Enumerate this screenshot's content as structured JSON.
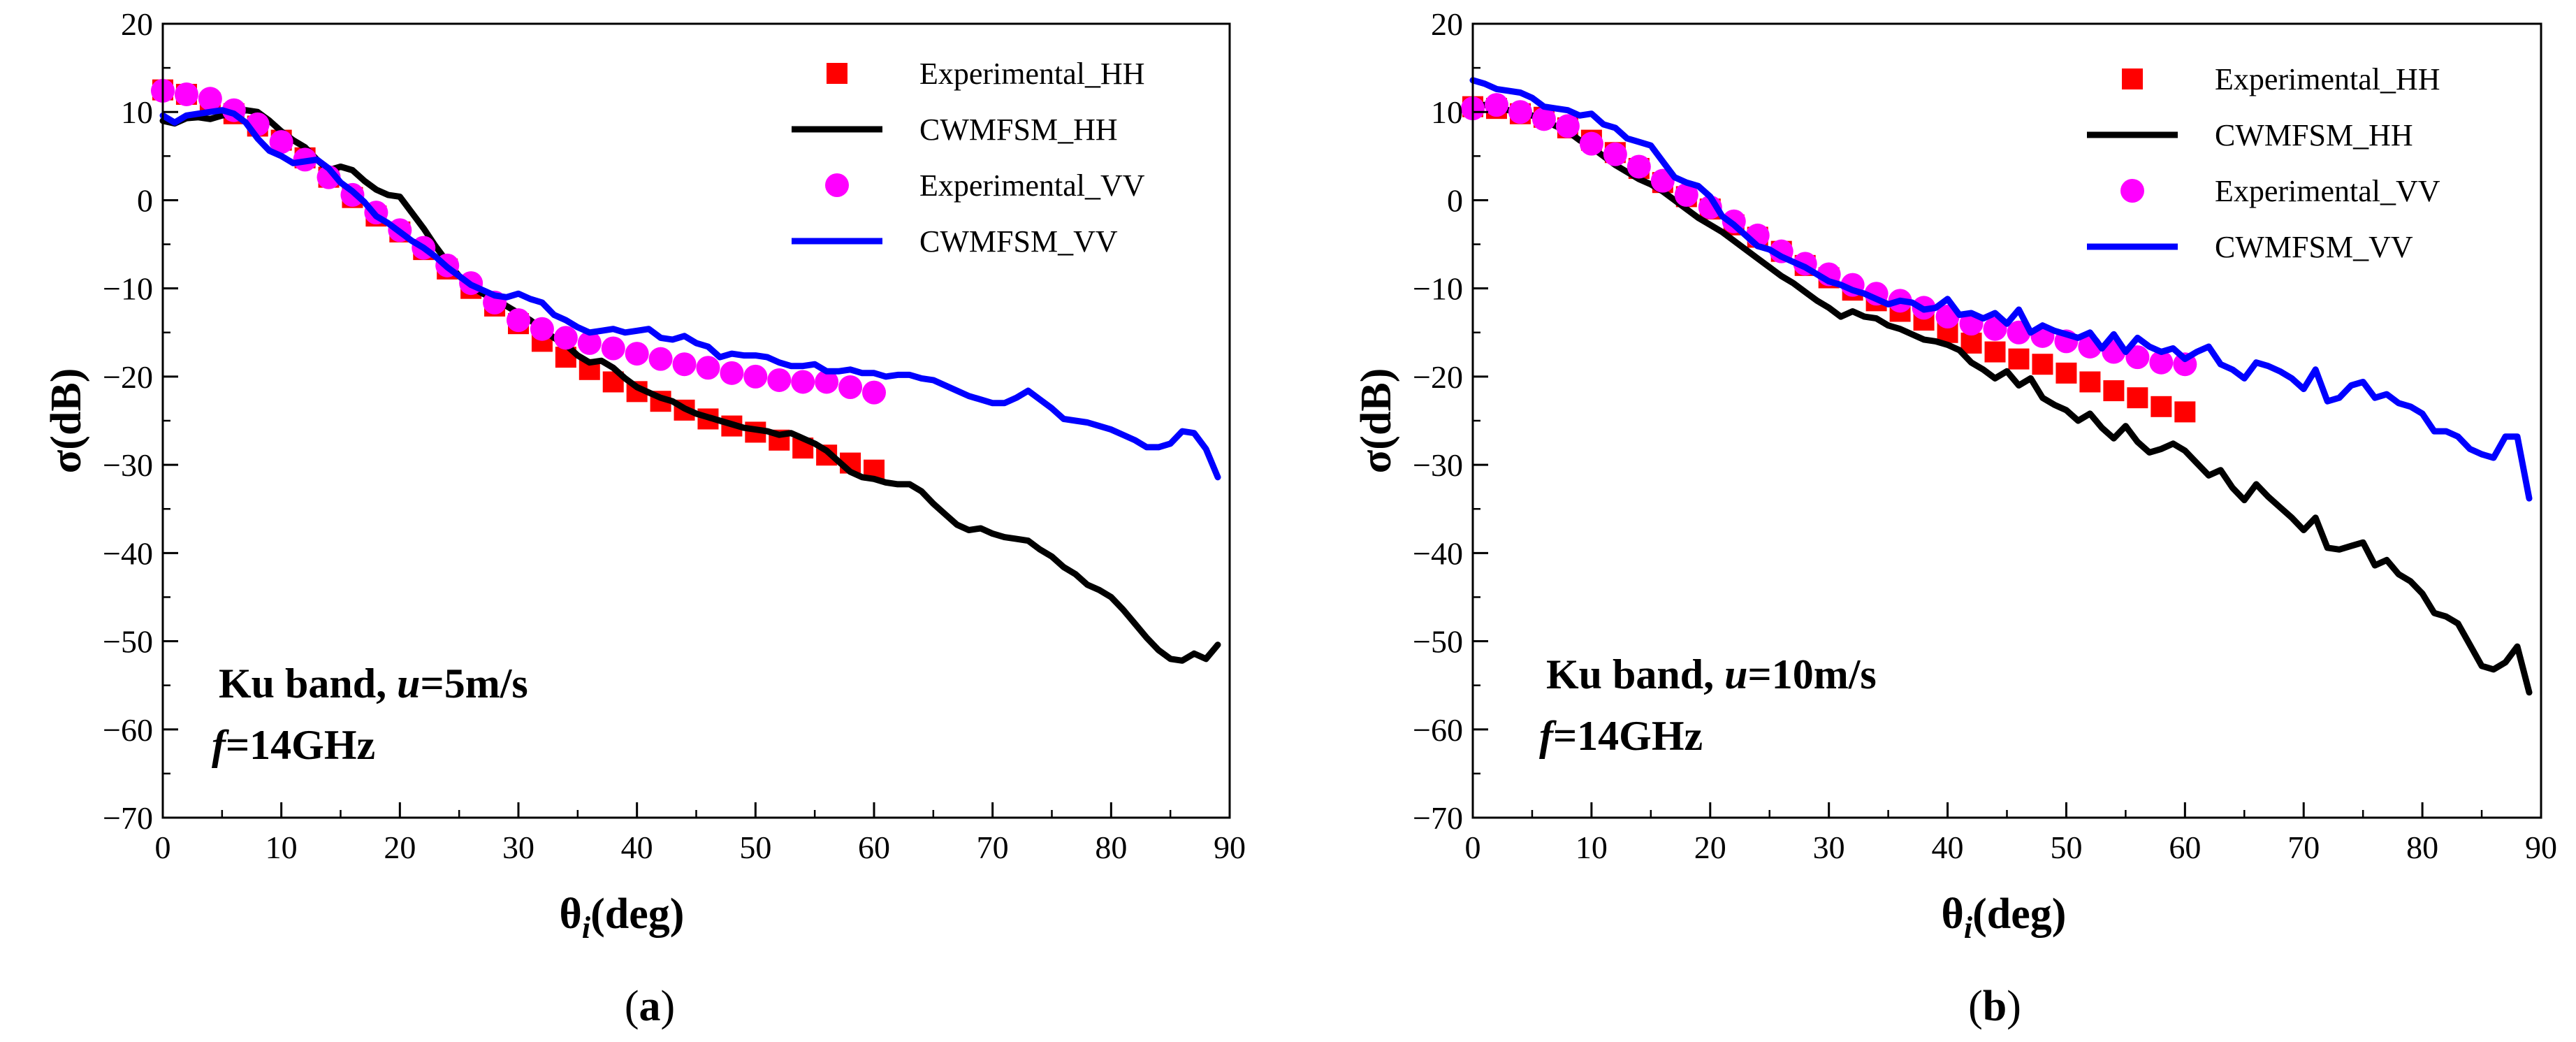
{
  "chart_data": [
    {
      "type": "line",
      "panel_label": "(a)",
      "panel_letter": "a",
      "xlabel": "θi(deg)",
      "xlabel_main": "θ",
      "xlabel_sub": "i",
      "xlabel_rest": "(deg)",
      "ylabel": "σ(dB)",
      "xlim": [
        0,
        90
      ],
      "ylim": [
        -70,
        20
      ],
      "xticks": [
        "0",
        "10",
        "20",
        "30",
        "40",
        "50",
        "60",
        "70",
        "80",
        "90"
      ],
      "yticks": [
        "20",
        "10",
        "0",
        "−10",
        "−20",
        "−30",
        "−40",
        "−50",
        "−60",
        "−70"
      ],
      "grid": false,
      "legend_position": "top-right",
      "annotation_line1": "Ku band, u=5m/s",
      "annotation_line1_a": "Ku band, ",
      "annotation_line1_var": "u",
      "annotation_line1_b": "=5m/s",
      "annotation_line2": "f=14GHz",
      "annotation_line2_var": "f",
      "annotation_line2_b": "=14GHz",
      "series": [
        {
          "name": "Experimental_HH",
          "kind": "marker",
          "marker": "square",
          "color": "#ff0000",
          "x": [
            0,
            2,
            4,
            6,
            8,
            10,
            12,
            14,
            16,
            18,
            20,
            22,
            24,
            26,
            28,
            30,
            32,
            34,
            36,
            38,
            40,
            42,
            44,
            46,
            48,
            50,
            52,
            54,
            56,
            58,
            60
          ],
          "y": [
            12.5,
            12,
            11,
            9.8,
            8.4,
            6.8,
            4.8,
            2.6,
            0.3,
            -1.8,
            -3.6,
            -5.6,
            -7.8,
            -10,
            -12,
            -14,
            -16,
            -17.8,
            -19.2,
            -20.6,
            -21.7,
            -22.8,
            -23.8,
            -24.8,
            -25.6,
            -26.3,
            -27.2,
            -28.1,
            -28.9,
            -29.8,
            -30.6
          ]
        },
        {
          "name": "CWMFSM_HH",
          "kind": "line",
          "color": "#000000",
          "x": [
            0,
            1,
            2,
            3,
            4,
            5,
            6,
            7,
            8,
            9,
            10,
            11,
            12,
            13,
            14,
            15,
            16,
            17,
            18,
            19,
            20,
            21,
            22,
            23,
            24,
            25,
            26,
            27,
            28,
            29,
            30,
            31,
            32,
            33,
            34,
            35,
            36,
            37,
            38,
            39,
            40,
            41,
            42,
            43,
            44,
            45,
            46,
            47,
            48,
            49,
            50,
            51,
            52,
            53,
            54,
            55,
            56,
            57,
            58,
            59,
            60,
            61,
            62,
            63,
            64,
            65,
            66,
            67,
            68,
            69,
            70,
            71,
            72,
            73,
            74,
            75,
            76,
            77,
            78,
            79,
            80,
            81,
            82,
            83,
            84,
            85,
            86,
            87,
            88,
            89
          ],
          "y": [
            9,
            8.7,
            9.3,
            9.4,
            9.2,
            9.6,
            9.8,
            10.2,
            10,
            9,
            7.8,
            6.8,
            6,
            4.6,
            3.4,
            3.8,
            3.4,
            2.2,
            1.2,
            0.6,
            0.4,
            -1.4,
            -3.2,
            -5.2,
            -7,
            -8.6,
            -9.8,
            -10.6,
            -11.2,
            -12,
            -12.8,
            -13.6,
            -14.6,
            -15.6,
            -16.4,
            -17.6,
            -18.4,
            -18.2,
            -19,
            -20.2,
            -21.2,
            -21.8,
            -22.4,
            -22.8,
            -23.6,
            -24.2,
            -24.6,
            -25,
            -25.4,
            -25.8,
            -26,
            -26.2,
            -26.6,
            -26.4,
            -27,
            -27.6,
            -28.4,
            -29.6,
            -30.8,
            -31.4,
            -31.6,
            -32,
            -32.2,
            -32.2,
            -33,
            -34.4,
            -35.6,
            -36.8,
            -37.4,
            -37.2,
            -37.8,
            -38.2,
            -38.4,
            -38.6,
            -39.6,
            -40.4,
            -41.6,
            -42.4,
            -43.6,
            -44.2,
            -45,
            -46.4,
            -48,
            -49.6,
            -51,
            -52,
            -52.2,
            -51.4,
            -52,
            -50.4
          ]
        },
        {
          "name": "Experimental_VV",
          "kind": "marker",
          "marker": "circle",
          "color": "#ff00ff",
          "x": [
            0,
            2,
            4,
            6,
            8,
            10,
            12,
            14,
            16,
            18,
            20,
            22,
            24,
            26,
            28,
            30,
            32,
            34,
            36,
            38,
            40,
            42,
            44,
            46,
            48,
            50,
            52,
            54,
            56,
            58,
            60
          ],
          "y": [
            12.4,
            12,
            11.5,
            10.2,
            8.6,
            6.6,
            4.6,
            2.6,
            0.6,
            -1.4,
            -3.4,
            -5.4,
            -7.4,
            -9.4,
            -11.6,
            -13.6,
            -14.6,
            -15.6,
            -16.2,
            -16.8,
            -17.4,
            -18,
            -18.6,
            -19,
            -19.6,
            -20,
            -20.4,
            -20.6,
            -20.6,
            -21.2,
            -21.8
          ]
        },
        {
          "name": "CWMFSM_VV",
          "kind": "line",
          "color": "#0000ff",
          "x": [
            0,
            1,
            2,
            3,
            4,
            5,
            6,
            7,
            8,
            9,
            10,
            11,
            12,
            13,
            14,
            15,
            16,
            17,
            18,
            19,
            20,
            21,
            22,
            23,
            24,
            25,
            26,
            27,
            28,
            29,
            30,
            31,
            32,
            33,
            34,
            35,
            36,
            37,
            38,
            39,
            40,
            41,
            42,
            43,
            44,
            45,
            46,
            47,
            48,
            49,
            50,
            51,
            52,
            53,
            54,
            55,
            56,
            57,
            58,
            59,
            60,
            61,
            62,
            63,
            64,
            65,
            66,
            67,
            68,
            69,
            70,
            71,
            72,
            73,
            74,
            75,
            76,
            77,
            78,
            79,
            80,
            81,
            82,
            83,
            84,
            85,
            86,
            87,
            88,
            89
          ],
          "y": [
            9.6,
            8.8,
            9.6,
            9.8,
            10,
            10.2,
            9.8,
            8.8,
            7,
            5.6,
            5,
            4.2,
            4.4,
            4.6,
            3.6,
            2,
            1,
            -0.2,
            -1.8,
            -2.6,
            -3.6,
            -4.6,
            -5.4,
            -6.4,
            -7.6,
            -8.6,
            -9.6,
            -10.2,
            -10.8,
            -11,
            -10.6,
            -11.2,
            -11.6,
            -13,
            -13.6,
            -14.4,
            -15,
            -14.8,
            -14.6,
            -15,
            -14.8,
            -14.6,
            -15.6,
            -15.8,
            -15.4,
            -16.2,
            -16.6,
            -17.8,
            -17.4,
            -17.6,
            -17.6,
            -17.8,
            -18.4,
            -18.8,
            -18.8,
            -18.6,
            -19.4,
            -19.4,
            -19.2,
            -19.6,
            -19.6,
            -20,
            -19.8,
            -19.8,
            -20.2,
            -20.4,
            -21,
            -21.6,
            -22.2,
            -22.6,
            -23,
            -23,
            -22.4,
            -21.6,
            -22.6,
            -23.6,
            -24.8,
            -25,
            -25.2,
            -25.6,
            -26,
            -26.6,
            -27.2,
            -28,
            -28,
            -27.6,
            -26.2,
            -26.4,
            -28.2,
            -31.4
          ]
        }
      ]
    },
    {
      "type": "line",
      "panel_label": "(b)",
      "panel_letter": "b",
      "xlabel": "θi(deg)",
      "xlabel_main": "θ",
      "xlabel_sub": "i",
      "xlabel_rest": "(deg)",
      "ylabel": "σ(dB)",
      "xlim": [
        0,
        90
      ],
      "ylim": [
        -70,
        20
      ],
      "xticks": [
        "0",
        "10",
        "20",
        "30",
        "40",
        "50",
        "60",
        "70",
        "80",
        "90"
      ],
      "yticks": [
        "20",
        "10",
        "0",
        "−10",
        "−20",
        "−30",
        "−40",
        "−50",
        "−60",
        "−70"
      ],
      "grid": false,
      "legend_position": "top-right",
      "annotation_line1": "Ku band, u=10m/s",
      "annotation_line1_a": "Ku band, ",
      "annotation_line1_var": "u",
      "annotation_line1_b": "=10m/s",
      "annotation_line2": "f=14GHz",
      "annotation_line2_var": "f",
      "annotation_line2_b": "=14GHz",
      "series": [
        {
          "name": "Experimental_HH",
          "kind": "marker",
          "marker": "square",
          "color": "#ff0000",
          "x": [
            0,
            2,
            4,
            6,
            8,
            10,
            12,
            14,
            16,
            18,
            20,
            22,
            24,
            26,
            28,
            30,
            32,
            34,
            36,
            38,
            40,
            42,
            44,
            46,
            48,
            50,
            52,
            54,
            56,
            58,
            60
          ],
          "y": [
            10.6,
            10.4,
            9.8,
            9.4,
            8.2,
            6.8,
            5.4,
            3.6,
            2,
            0.4,
            -1,
            -2.8,
            -4.2,
            -5.8,
            -7.4,
            -8.8,
            -10.2,
            -11.4,
            -12.6,
            -13.6,
            -15,
            -16.2,
            -17.2,
            -18,
            -18.6,
            -19.6,
            -20.6,
            -21.6,
            -22.4,
            -23.4,
            -24
          ]
        },
        {
          "name": "CWMFSM_HH",
          "kind": "line",
          "color": "#000000",
          "x": [
            0,
            1,
            2,
            3,
            4,
            5,
            6,
            7,
            8,
            9,
            10,
            11,
            12,
            13,
            14,
            15,
            16,
            17,
            18,
            19,
            20,
            21,
            22,
            23,
            24,
            25,
            26,
            27,
            28,
            29,
            30,
            31,
            32,
            33,
            34,
            35,
            36,
            37,
            38,
            39,
            40,
            41,
            42,
            43,
            44,
            45,
            46,
            47,
            48,
            49,
            50,
            51,
            52,
            53,
            54,
            55,
            56,
            57,
            58,
            59,
            60,
            61,
            62,
            63,
            64,
            65,
            66,
            67,
            68,
            69,
            70,
            71,
            72,
            73,
            74,
            75,
            76,
            77,
            78,
            79,
            80,
            81,
            82,
            83,
            84,
            85,
            86,
            87,
            88,
            89
          ],
          "y": [
            10.6,
            10.8,
            10.6,
            10.2,
            10,
            9.6,
            9,
            8.4,
            7.8,
            6.8,
            6,
            5,
            4,
            3.2,
            2.4,
            1.8,
            1,
            0,
            -1,
            -2,
            -2.8,
            -3.6,
            -4.6,
            -5.6,
            -6.6,
            -7.6,
            -8.6,
            -9.4,
            -10.4,
            -11.4,
            -12.2,
            -13.2,
            -12.6,
            -13.2,
            -13.4,
            -14.2,
            -14.6,
            -15.2,
            -15.8,
            -16,
            -16.4,
            -17,
            -18.4,
            -19.2,
            -20.2,
            -19.4,
            -21,
            -20.2,
            -22.4,
            -23.2,
            -23.8,
            -25,
            -24.2,
            -25.8,
            -27,
            -25.6,
            -27.4,
            -28.6,
            -28.2,
            -27.6,
            -28.4,
            -29.8,
            -31.2,
            -30.6,
            -32.6,
            -34,
            -32.2,
            -33.6,
            -34.8,
            -36,
            -37.4,
            -36,
            -39.4,
            -39.6,
            -39.2,
            -38.8,
            -41.4,
            -40.8,
            -42.4,
            -43.2,
            -44.6,
            -46.8,
            -47.2,
            -48,
            -50.4,
            -52.8,
            -53.2,
            -52.4,
            -50.6,
            -55.8
          ]
        },
        {
          "name": "Experimental_VV",
          "kind": "marker",
          "marker": "circle",
          "color": "#ff00ff",
          "x": [
            0,
            2,
            4,
            6,
            8,
            10,
            12,
            14,
            16,
            18,
            20,
            22,
            24,
            26,
            28,
            30,
            32,
            34,
            36,
            38,
            40,
            42,
            44,
            46,
            48,
            50,
            52,
            54,
            56,
            58,
            60
          ],
          "y": [
            10.4,
            10.8,
            10,
            9.2,
            8.4,
            6.4,
            5.2,
            3.8,
            2.2,
            0.6,
            -0.8,
            -2.4,
            -4,
            -5.8,
            -7.2,
            -8.4,
            -9.6,
            -10.6,
            -11.4,
            -12.2,
            -13.2,
            -14,
            -14.6,
            -15,
            -15.4,
            -16,
            -16.6,
            -17.2,
            -17.8,
            -18.4,
            -18.6
          ]
        },
        {
          "name": "CWMFSM_VV",
          "kind": "line",
          "color": "#0000ff",
          "x": [
            0,
            1,
            2,
            3,
            4,
            5,
            6,
            7,
            8,
            9,
            10,
            11,
            12,
            13,
            14,
            15,
            16,
            17,
            18,
            19,
            20,
            21,
            22,
            23,
            24,
            25,
            26,
            27,
            28,
            29,
            30,
            31,
            32,
            33,
            34,
            35,
            36,
            37,
            38,
            39,
            40,
            41,
            42,
            43,
            44,
            45,
            46,
            47,
            48,
            49,
            50,
            51,
            52,
            53,
            54,
            55,
            56,
            57,
            58,
            59,
            60,
            61,
            62,
            63,
            64,
            65,
            66,
            67,
            68,
            69,
            70,
            71,
            72,
            73,
            74,
            75,
            76,
            77,
            78,
            79,
            80,
            81,
            82,
            83,
            84,
            85,
            86,
            87,
            88,
            89
          ],
          "y": [
            13.6,
            13.2,
            12.6,
            12.4,
            12.2,
            11.6,
            10.6,
            10.4,
            10.2,
            9.6,
            9.8,
            8.6,
            8.2,
            7,
            6.6,
            6.2,
            4.4,
            2.6,
            2,
            1.6,
            0.4,
            -1.8,
            -2.8,
            -4,
            -5.2,
            -5.6,
            -6.4,
            -7,
            -7.6,
            -8.4,
            -9.2,
            -9.6,
            -10.2,
            -10.6,
            -11.2,
            -11.8,
            -11.4,
            -11.6,
            -12.4,
            -12.2,
            -11.2,
            -13,
            -12.8,
            -13.4,
            -12.8,
            -14,
            -12.4,
            -15,
            -14.2,
            -14.8,
            -15.2,
            -15.6,
            -15,
            -16.8,
            -15.2,
            -17.2,
            -15.6,
            -16.6,
            -17.2,
            -16.8,
            -18,
            -17.2,
            -16.6,
            -18.6,
            -19.2,
            -20.2,
            -18.4,
            -18.8,
            -19.4,
            -20.2,
            -21.4,
            -19.2,
            -22.8,
            -22.4,
            -21,
            -20.6,
            -22.4,
            -22,
            -23,
            -23.4,
            -24.2,
            -26.2,
            -26.2,
            -26.8,
            -28.2,
            -28.8,
            -29.2,
            -26.8,
            -26.8,
            -33.8
          ]
        }
      ]
    }
  ]
}
